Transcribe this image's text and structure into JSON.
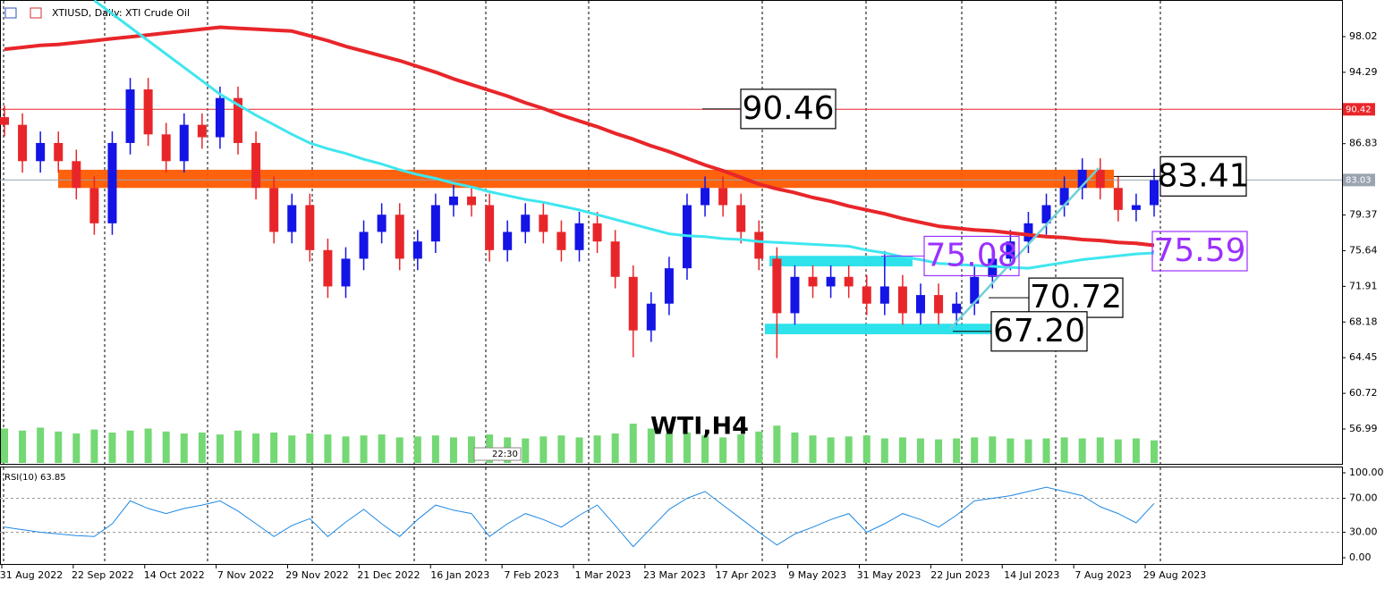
{
  "chart_data": {
    "type": "candlestick",
    "title": "XTIUSD, Daily: XTI Crude Oil",
    "watermark": "WTI,H4",
    "time_tag": "22:30",
    "x_labels": [
      "31 Aug 2022",
      "22 Sep 2022",
      "14 Oct 2022",
      "7 Nov 2022",
      "29 Nov 2022",
      "21 Dec 2022",
      "16 Jan 2023",
      "7 Feb 2023",
      "1 Mar 2023",
      "23 Mar 2023",
      "17 Apr 2023",
      "9 May 2023",
      "31 May 2023",
      "22 Jun 2023",
      "14 Jul 2023",
      "7 Aug 2023",
      "29 Aug 2023"
    ],
    "ylim": [
      53.44,
      101.85
    ],
    "yticks": [
      98.02,
      94.29,
      86.83,
      79.37,
      75.64,
      71.91,
      68.18,
      64.45,
      60.72,
      56.99
    ],
    "up_color": "#1414e6",
    "down_color": "#e8262a",
    "open": [
      89.6,
      88.8,
      85.0,
      86.9,
      85.0,
      82.2,
      78.5,
      86.9,
      92.5,
      87.8,
      85.0,
      88.8,
      87.5,
      91.6,
      86.9,
      82.2,
      77.6,
      80.4,
      75.7,
      71.9,
      74.8,
      77.6,
      79.4,
      74.8,
      76.6,
      80.4,
      81.3,
      80.4,
      75.7,
      77.6,
      79.4,
      77.6,
      75.7,
      78.5,
      76.6,
      72.9,
      67.3,
      70.1,
      73.8,
      80.4,
      82.2,
      80.4,
      77.6,
      74.8,
      69.1,
      72.9,
      71.9,
      72.9,
      71.9,
      70.1,
      71.9,
      69.1,
      71.0,
      69.1,
      70.1,
      72.9,
      74.8,
      76.6,
      78.5,
      80.4,
      82.2,
      84.1,
      82.2,
      79.9,
      80.4
    ],
    "high": [
      90.8,
      90.0,
      88.1,
      88.1,
      86.2,
      83.4,
      88.1,
      93.7,
      93.7,
      89.0,
      90.0,
      90.0,
      92.8,
      92.8,
      88.1,
      83.4,
      81.6,
      81.6,
      76.9,
      76.0,
      78.8,
      80.6,
      80.6,
      77.8,
      81.6,
      82.5,
      82.5,
      81.6,
      78.8,
      80.6,
      80.6,
      78.8,
      79.7,
      79.7,
      77.8,
      74.1,
      71.3,
      75.0,
      81.6,
      83.4,
      83.4,
      81.6,
      78.8,
      76.0,
      74.1,
      74.1,
      74.1,
      74.1,
      73.1,
      75.6,
      73.1,
      72.2,
      72.2,
      71.3,
      74.1,
      76.0,
      77.8,
      79.7,
      81.6,
      83.4,
      85.3,
      85.3,
      83.4,
      81.6,
      84.2
    ],
    "low": [
      87.6,
      83.8,
      83.8,
      83.8,
      81.0,
      77.3,
      77.3,
      85.7,
      86.6,
      83.8,
      83.8,
      86.3,
      86.3,
      85.7,
      81.0,
      76.4,
      76.4,
      74.5,
      70.7,
      70.7,
      73.6,
      76.4,
      73.6,
      73.6,
      75.4,
      79.2,
      79.2,
      74.5,
      74.5,
      76.4,
      76.4,
      74.5,
      74.5,
      75.4,
      71.7,
      64.5,
      66.1,
      68.9,
      72.6,
      79.2,
      79.2,
      76.4,
      73.6,
      64.4,
      67.9,
      70.7,
      70.7,
      70.7,
      68.9,
      68.9,
      67.9,
      67.9,
      67.9,
      67.9,
      68.9,
      71.7,
      73.6,
      75.4,
      77.3,
      79.2,
      81.0,
      81.0,
      78.7,
      78.7,
      79.2
    ],
    "close": [
      88.8,
      85.0,
      86.9,
      85.0,
      82.2,
      78.5,
      86.9,
      92.5,
      87.8,
      85.0,
      88.8,
      87.5,
      91.6,
      86.9,
      82.2,
      77.6,
      80.4,
      75.7,
      71.9,
      74.8,
      77.6,
      79.4,
      74.8,
      76.6,
      80.4,
      81.3,
      80.4,
      75.7,
      77.6,
      79.4,
      77.6,
      75.7,
      78.5,
      76.6,
      72.9,
      67.3,
      70.1,
      73.8,
      80.4,
      82.2,
      80.4,
      77.6,
      74.8,
      69.1,
      72.9,
      71.9,
      72.9,
      71.9,
      70.1,
      71.9,
      69.1,
      71.0,
      69.1,
      70.1,
      72.9,
      74.8,
      76.6,
      78.5,
      80.4,
      82.2,
      84.1,
      82.2,
      79.9,
      80.4,
      83.0
    ],
    "ma_slow": {
      "color": "#e8262a",
      "values": [
        96.7,
        96.9,
        97.1,
        97.2,
        97.4,
        97.6,
        97.8,
        98.0,
        98.2,
        98.4,
        98.6,
        98.8,
        99.0,
        98.9,
        98.8,
        98.7,
        98.6,
        98.1,
        97.6,
        97.0,
        96.5,
        96.0,
        95.5,
        94.9,
        94.3,
        93.6,
        93.0,
        92.4,
        91.8,
        91.1,
        90.5,
        89.8,
        89.2,
        88.6,
        87.9,
        87.3,
        86.6,
        86.0,
        85.3,
        84.6,
        84.0,
        83.3,
        82.6,
        82.1,
        81.7,
        81.2,
        80.8,
        80.3,
        79.9,
        79.5,
        79.0,
        78.6,
        78.2,
        78.0,
        77.8,
        77.7,
        77.5,
        77.3,
        77.1,
        77.0,
        76.8,
        76.7,
        76.5,
        76.4,
        76.2
      ]
    },
    "ma_fast": {
      "color": "#3fe6ef",
      "values": [
        null,
        null,
        null,
        null,
        null,
        101.8,
        100.4,
        99.0,
        97.6,
        96.2,
        94.8,
        93.4,
        92.0,
        90.9,
        89.8,
        88.8,
        87.8,
        86.9,
        86.3,
        85.8,
        85.2,
        84.7,
        84.1,
        83.6,
        83.2,
        82.7,
        82.3,
        81.8,
        81.4,
        81.0,
        80.7,
        80.3,
        79.9,
        79.4,
        78.9,
        78.4,
        77.9,
        77.4,
        77.2,
        77.1,
        76.9,
        76.8,
        76.6,
        76.5,
        76.4,
        76.3,
        76.2,
        76.1,
        75.7,
        75.4,
        75.0,
        74.7,
        74.3,
        74.2,
        74.1,
        74.0,
        73.9,
        73.8,
        74.1,
        74.4,
        74.7,
        74.9,
        75.1,
        75.3,
        75.4
      ]
    },
    "volume": {
      "color": "#74d874",
      "ylim": [
        0,
        100
      ],
      "values": [
        70,
        66,
        72,
        64,
        60,
        68,
        62,
        66,
        70,
        64,
        60,
        62,
        58,
        66,
        60,
        62,
        56,
        60,
        58,
        54,
        56,
        58,
        52,
        54,
        56,
        52,
        54,
        58,
        52,
        50,
        54,
        56,
        52,
        56,
        60,
        80,
        70,
        60,
        62,
        56,
        52,
        58,
        64,
        76,
        62,
        56,
        52,
        54,
        56,
        50,
        52,
        50,
        48,
        50,
        52,
        54,
        50,
        48,
        50,
        52,
        50,
        52,
        48,
        50,
        46
      ]
    },
    "hline": {
      "value": 90.42,
      "color": "#e8262a"
    },
    "last_price": 83.03,
    "zones": [
      {
        "from": 82.2,
        "to": 84.1,
        "color": "#ff5a00"
      },
      {
        "from": 74.0,
        "to": 75.1,
        "color": "#22e0ea"
      },
      {
        "from": 66.9,
        "to": 68.0,
        "color": "#22e0ea"
      }
    ],
    "annotations": [
      {
        "value": 90.46,
        "color": "#000000"
      },
      {
        "value": 83.41,
        "color": "#000000"
      },
      {
        "value": 75.08,
        "color": "#9b30ff"
      },
      {
        "value": 75.59,
        "color": "#9b30ff"
      },
      {
        "value": 70.72,
        "color": "#000000"
      },
      {
        "value": 67.2,
        "label": "67.20",
        "color": "#000000"
      }
    ],
    "rsi": {
      "title": "RSI(10) 63.85",
      "color": "#1e88e5",
      "ylim": [
        0,
        100
      ],
      "yticks": [
        {
          "value": 100,
          "label": "100.00"
        },
        {
          "value": 70,
          "label": "70.00"
        },
        {
          "value": 30,
          "label": "30.00"
        },
        {
          "value": 0,
          "label": "0.00"
        }
      ],
      "values": [
        36,
        33,
        30,
        28,
        26,
        25,
        40,
        67,
        58,
        52,
        58,
        62,
        67,
        55,
        40,
        25,
        38,
        46,
        25,
        42,
        57,
        40,
        25,
        45,
        62,
        56,
        52,
        25,
        40,
        52,
        45,
        36,
        50,
        62,
        38,
        13,
        35,
        57,
        70,
        78,
        62,
        46,
        30,
        15,
        28,
        36,
        45,
        52,
        30,
        40,
        52,
        45,
        36,
        50,
        67,
        70,
        73,
        78,
        83,
        78,
        73,
        60,
        52,
        41,
        63.85
      ]
    }
  }
}
